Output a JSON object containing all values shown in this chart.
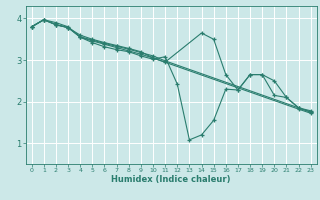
{
  "title": "",
  "xlabel": "Humidex (Indice chaleur)",
  "background_color": "#cce8e8",
  "grid_color": "#ffffff",
  "line_color": "#2a7d6e",
  "xlim": [
    -0.5,
    23.5
  ],
  "ylim": [
    0.5,
    4.3
  ],
  "yticks": [
    1,
    2,
    3,
    4
  ],
  "xticks": [
    0,
    1,
    2,
    3,
    4,
    5,
    6,
    7,
    8,
    9,
    10,
    11,
    12,
    13,
    14,
    15,
    16,
    17,
    18,
    19,
    20,
    21,
    22,
    23
  ],
  "series": [
    {
      "x": [
        0,
        1,
        2,
        3,
        4,
        5,
        6,
        7,
        8,
        9,
        10,
        11,
        12,
        13,
        14,
        15,
        16,
        17,
        18,
        19,
        20,
        21,
        22,
        23
      ],
      "y": [
        3.8,
        3.97,
        3.9,
        3.8,
        3.55,
        3.42,
        3.32,
        3.25,
        3.2,
        3.1,
        3.02,
        3.08,
        2.42,
        1.08,
        1.2,
        1.55,
        2.3,
        2.28,
        2.65,
        2.65,
        2.5,
        2.1,
        1.85,
        1.75
      ]
    },
    {
      "x": [
        0,
        1,
        2,
        3,
        4,
        5,
        6,
        7,
        8,
        9,
        10,
        11,
        14,
        15,
        16,
        17,
        18,
        19,
        20,
        21,
        22,
        23
      ],
      "y": [
        3.8,
        3.97,
        3.85,
        3.78,
        3.6,
        3.5,
        3.42,
        3.35,
        3.28,
        3.2,
        3.05,
        2.95,
        3.65,
        3.5,
        2.65,
        2.28,
        2.65,
        2.65,
        2.15,
        2.1,
        1.85,
        1.75
      ]
    },
    {
      "x": [
        0,
        1,
        2,
        3,
        4,
        5,
        6,
        7,
        8,
        9,
        10,
        11,
        22,
        23
      ],
      "y": [
        3.8,
        3.97,
        3.85,
        3.78,
        3.56,
        3.48,
        3.4,
        3.33,
        3.26,
        3.18,
        3.1,
        2.98,
        1.85,
        1.78
      ]
    },
    {
      "x": [
        0,
        1,
        2,
        3,
        4,
        5,
        6,
        7,
        8,
        9,
        10,
        22,
        23
      ],
      "y": [
        3.8,
        3.97,
        3.85,
        3.78,
        3.55,
        3.46,
        3.38,
        3.3,
        3.22,
        3.14,
        3.05,
        1.82,
        1.72
      ]
    }
  ]
}
